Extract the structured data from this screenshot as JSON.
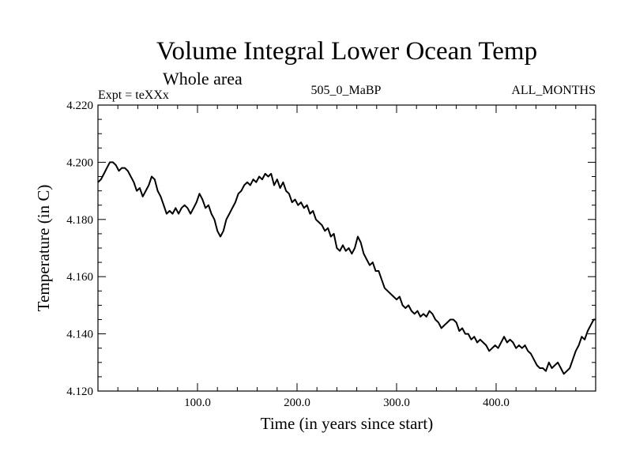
{
  "chart_data": {
    "type": "line",
    "title": "Volume Integral Lower Ocean Temp",
    "subtitle": "Whole area",
    "annotations": {
      "left": "Expt = teXXx",
      "center": "505_0_MaBP",
      "right": "ALL_MONTHS"
    },
    "xlabel": "Time (in years since start)",
    "ylabel": "Temperature (in C)",
    "xlim": [
      0,
      500
    ],
    "ylim": [
      4.12,
      4.22
    ],
    "x_ticks": [
      100,
      200,
      300,
      400
    ],
    "x_tick_labels": [
      "100.0",
      "200.0",
      "300.0",
      "400.0"
    ],
    "y_ticks": [
      4.12,
      4.14,
      4.16,
      4.18,
      4.2,
      4.22
    ],
    "y_tick_labels": [
      "4.120",
      "4.140",
      "4.160",
      "4.180",
      "4.200",
      "4.220"
    ],
    "grid": false,
    "legend": "none",
    "series": [
      {
        "name": "Lower Ocean Temp",
        "color": "#000000",
        "x": [
          0,
          3,
          6,
          9,
          12,
          15,
          18,
          21,
          24,
          27,
          30,
          33,
          36,
          39,
          42,
          45,
          48,
          51,
          54,
          57,
          60,
          63,
          66,
          69,
          72,
          75,
          78,
          81,
          84,
          87,
          90,
          93,
          96,
          99,
          102,
          105,
          108,
          111,
          114,
          117,
          120,
          123,
          126,
          129,
          132,
          135,
          138,
          141,
          144,
          147,
          150,
          153,
          156,
          159,
          162,
          165,
          168,
          171,
          174,
          177,
          180,
          183,
          186,
          189,
          192,
          195,
          198,
          201,
          204,
          207,
          210,
          213,
          216,
          219,
          222,
          225,
          228,
          231,
          234,
          237,
          240,
          243,
          246,
          249,
          252,
          255,
          258,
          261,
          264,
          267,
          270,
          273,
          276,
          279,
          282,
          285,
          288,
          291,
          294,
          297,
          300,
          303,
          306,
          309,
          312,
          315,
          318,
          321,
          324,
          327,
          330,
          333,
          336,
          339,
          342,
          345,
          348,
          351,
          354,
          357,
          360,
          363,
          366,
          369,
          372,
          375,
          378,
          381,
          384,
          387,
          390,
          393,
          396,
          399,
          402,
          405,
          408,
          411,
          414,
          417,
          420,
          423,
          426,
          429,
          432,
          435,
          438,
          441,
          444,
          447,
          450,
          453,
          456,
          459,
          462,
          465,
          468,
          471,
          474,
          477,
          480,
          483,
          486,
          489,
          492,
          495,
          498,
          500
        ],
        "values": [
          4.193,
          4.194,
          4.196,
          4.198,
          4.2,
          4.2,
          4.199,
          4.197,
          4.198,
          4.198,
          4.197,
          4.195,
          4.193,
          4.19,
          4.191,
          4.188,
          4.19,
          4.192,
          4.195,
          4.194,
          4.19,
          4.188,
          4.185,
          4.182,
          4.183,
          4.182,
          4.184,
          4.182,
          4.184,
          4.185,
          4.184,
          4.182,
          4.184,
          4.186,
          4.189,
          4.187,
          4.184,
          4.185,
          4.182,
          4.18,
          4.176,
          4.174,
          4.176,
          4.18,
          4.182,
          4.184,
          4.186,
          4.189,
          4.19,
          4.192,
          4.193,
          4.192,
          4.194,
          4.193,
          4.195,
          4.194,
          4.196,
          4.195,
          4.196,
          4.192,
          4.194,
          4.191,
          4.193,
          4.19,
          4.189,
          4.186,
          4.187,
          4.185,
          4.186,
          4.184,
          4.185,
          4.182,
          4.183,
          4.18,
          4.179,
          4.178,
          4.176,
          4.177,
          4.174,
          4.175,
          4.17,
          4.169,
          4.171,
          4.169,
          4.17,
          4.168,
          4.17,
          4.174,
          4.172,
          4.168,
          4.166,
          4.164,
          4.165,
          4.162,
          4.162,
          4.159,
          4.156,
          4.155,
          4.154,
          4.153,
          4.152,
          4.153,
          4.15,
          4.149,
          4.15,
          4.148,
          4.147,
          4.148,
          4.146,
          4.147,
          4.146,
          4.148,
          4.147,
          4.145,
          4.144,
          4.142,
          4.143,
          4.144,
          4.145,
          4.145,
          4.144,
          4.141,
          4.142,
          4.14,
          4.14,
          4.138,
          4.139,
          4.137,
          4.138,
          4.137,
          4.136,
          4.134,
          4.135,
          4.136,
          4.135,
          4.137,
          4.139,
          4.137,
          4.138,
          4.137,
          4.135,
          4.136,
          4.135,
          4.136,
          4.134,
          4.133,
          4.131,
          4.129,
          4.128,
          4.128,
          4.127,
          4.13,
          4.128,
          4.129,
          4.13,
          4.128,
          4.126,
          4.127,
          4.128,
          4.131,
          4.134,
          4.136,
          4.139,
          4.138,
          4.141,
          4.143,
          4.145,
          4.145
        ]
      }
    ]
  }
}
